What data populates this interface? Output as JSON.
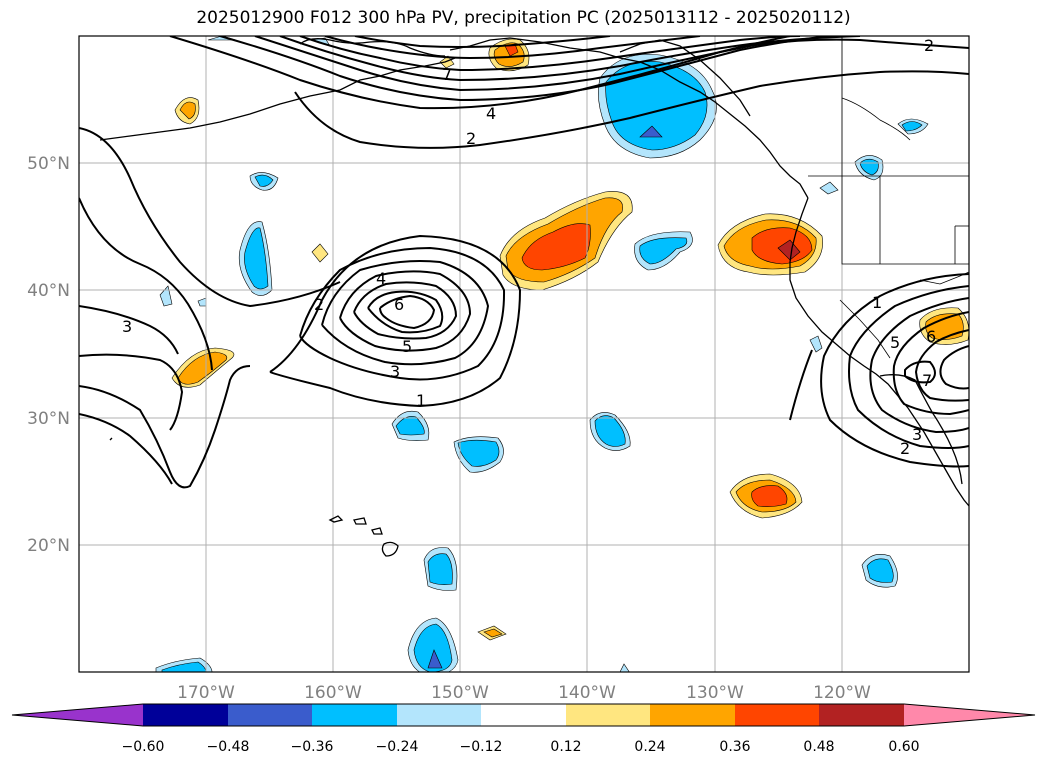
{
  "title": "2025012900 F012 300 hPa PV, precipitation PC (2025013112 - 2025020112)",
  "map": {
    "projection": "PlateCarree",
    "lon_range": [
      -180,
      -110
    ],
    "lat_range": [
      10,
      60
    ],
    "gridlines": true,
    "lon_tick_labels": [
      "170°W",
      "160°W",
      "150°W",
      "140°W",
      "130°W",
      "120°W"
    ],
    "lat_tick_labels": [
      "50°N",
      "40°N",
      "30°N",
      "20°N"
    ],
    "tick_label_color": "#808080",
    "pv_contour_labels": [
      "7",
      "4",
      "2",
      "2",
      "3",
      "2",
      "4",
      "6",
      "5",
      "3",
      "1",
      "1",
      "5",
      "7",
      "6",
      "3",
      "2"
    ]
  },
  "colorbar": {
    "tick_labels": [
      "−0.60",
      "−0.48",
      "−0.36",
      "−0.24",
      "−0.12",
      "0.12",
      "0.24",
      "0.36",
      "0.48",
      "0.60"
    ],
    "colors": [
      "#9933cc",
      "#000099",
      "#3a5ccc",
      "#00bfff",
      "#b3e5fc",
      "#ffffff",
      "#ffe680",
      "#ffa500",
      "#ff4500",
      "#b22222",
      "#ff88aa"
    ],
    "extend": "both"
  },
  "precipitation_anomaly_colors": {
    "neg_strong": "#3a5ccc",
    "neg": "#00bfff",
    "neg_weak": "#b3e5fc",
    "pos_weak": "#ffe680",
    "pos": "#ffa500",
    "pos_strong": "#ff4500",
    "pos_extreme": "#b22222"
  }
}
